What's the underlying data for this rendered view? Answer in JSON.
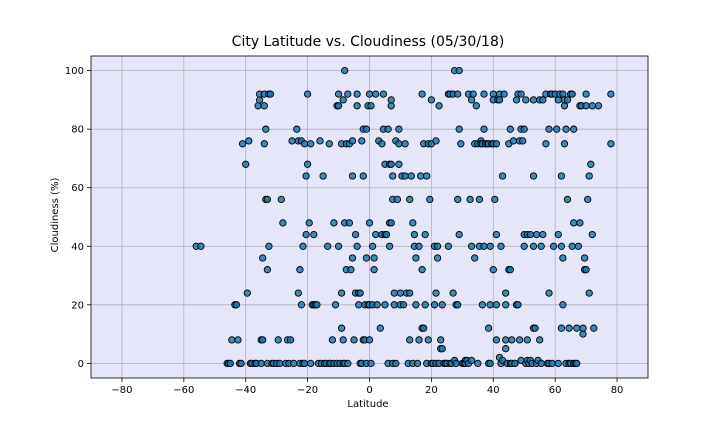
{
  "chart_data": {
    "type": "scatter",
    "title": "City Latitude vs. Cloudiness (05/30/18)",
    "xlabel": "Latitude",
    "ylabel": "Cloudiness (%)",
    "xlim": [
      -90,
      90
    ],
    "ylim": [
      -5,
      105
    ],
    "xticks": [
      -80,
      -60,
      -40,
      -20,
      0,
      20,
      40,
      60,
      80
    ],
    "yticks": [
      0,
      20,
      40,
      60,
      80,
      100
    ],
    "grid": true,
    "colors": {
      "plot_background": "#e6e6fa",
      "marker_fill": "#1f77b4",
      "marker_edge": "#000000",
      "grid": "#b0b0b0"
    },
    "points": [
      [
        -56,
        40
      ],
      [
        -54.5,
        40
      ],
      [
        -46,
        0
      ],
      [
        -45.5,
        0
      ],
      [
        -45,
        0
      ],
      [
        -44.5,
        8
      ],
      [
        -43.5,
        20
      ],
      [
        -43,
        20
      ],
      [
        -42.5,
        8
      ],
      [
        -42,
        0
      ],
      [
        -41.5,
        0
      ],
      [
        -41,
        75
      ],
      [
        -40,
        68
      ],
      [
        -39.5,
        24
      ],
      [
        -39,
        76
      ],
      [
        -38.5,
        0
      ],
      [
        -38,
        0
      ],
      [
        -37,
        0
      ],
      [
        -36.5,
        0
      ],
      [
        -36,
        88
      ],
      [
        -35.5,
        90
      ],
      [
        -35.5,
        92
      ],
      [
        -35,
        8
      ],
      [
        -35,
        0
      ],
      [
        -34.5,
        36
      ],
      [
        -34.5,
        8
      ],
      [
        -34,
        92
      ],
      [
        -34,
        88
      ],
      [
        -34,
        75
      ],
      [
        -33.5,
        80
      ],
      [
        -33.5,
        56
      ],
      [
        -33,
        32
      ],
      [
        -33,
        56
      ],
      [
        -33,
        0
      ],
      [
        -32.5,
        92
      ],
      [
        -32.5,
        40
      ],
      [
        -32,
        92
      ],
      [
        -31.5,
        0
      ],
      [
        -31,
        0
      ],
      [
        -30,
        0
      ],
      [
        -29.5,
        8
      ],
      [
        -29,
        0
      ],
      [
        -28.5,
        56
      ],
      [
        -28,
        48
      ],
      [
        -27,
        0
      ],
      [
        -26.5,
        8
      ],
      [
        -26,
        0
      ],
      [
        -25.5,
        8
      ],
      [
        -25,
        76
      ],
      [
        -24.5,
        0
      ],
      [
        -23.5,
        80
      ],
      [
        -23,
        76
      ],
      [
        -23,
        24
      ],
      [
        -22.5,
        0
      ],
      [
        -22.5,
        32
      ],
      [
        -22,
        76
      ],
      [
        -22,
        20
      ],
      [
        -21.5,
        40
      ],
      [
        -21.5,
        0
      ],
      [
        -21,
        0
      ],
      [
        -21,
        75
      ],
      [
        -20.5,
        44
      ],
      [
        -20.5,
        64
      ],
      [
        -20,
        68
      ],
      [
        -20,
        92
      ],
      [
        -19.5,
        48
      ],
      [
        -19,
        75
      ],
      [
        -19,
        0
      ],
      [
        -18.5,
        20
      ],
      [
        -18,
        44
      ],
      [
        -18,
        20
      ],
      [
        -17.5,
        20
      ],
      [
        -17,
        20
      ],
      [
        -16.5,
        0
      ],
      [
        -16,
        76
      ],
      [
        -15.5,
        0
      ],
      [
        -15,
        64
      ],
      [
        -14.5,
        0
      ],
      [
        -14,
        0
      ],
      [
        -13.5,
        40
      ],
      [
        -13,
        0
      ],
      [
        -13,
        75
      ],
      [
        -12.5,
        0
      ],
      [
        -12,
        8
      ],
      [
        -11.5,
        48
      ],
      [
        -11.5,
        0
      ],
      [
        -11,
        20
      ],
      [
        -10.5,
        88
      ],
      [
        -10.5,
        0
      ],
      [
        -10,
        92
      ],
      [
        -10,
        88
      ],
      [
        -10,
        40
      ],
      [
        -9.5,
        0
      ],
      [
        -9,
        75
      ],
      [
        -9,
        24
      ],
      [
        -9,
        12
      ],
      [
        -8.5,
        90
      ],
      [
        -8.5,
        8
      ],
      [
        -8.5,
        0
      ],
      [
        -8,
        48
      ],
      [
        -8,
        100
      ],
      [
        -8,
        0
      ],
      [
        -7.5,
        75
      ],
      [
        -7.5,
        32
      ],
      [
        -7,
        92
      ],
      [
        -7,
        0
      ],
      [
        -6.5,
        75
      ],
      [
        -6.5,
        48
      ],
      [
        -6,
        32
      ],
      [
        -5.5,
        76
      ],
      [
        -5.5,
        36
      ],
      [
        -5.5,
        64
      ],
      [
        -5,
        8
      ],
      [
        -4.5,
        44
      ],
      [
        -4.5,
        24
      ],
      [
        -4,
        88
      ],
      [
        -4,
        92
      ],
      [
        -4,
        40
      ],
      [
        -3.5,
        24
      ],
      [
        -3.5,
        20
      ],
      [
        -3,
        24
      ],
      [
        -3,
        0
      ],
      [
        -2.5,
        0
      ],
      [
        -2.5,
        76
      ],
      [
        -2,
        64
      ],
      [
        -2,
        80
      ],
      [
        -2,
        8
      ],
      [
        -1.5,
        8
      ],
      [
        -1.5,
        20
      ],
      [
        -1,
        80
      ],
      [
        -1,
        36
      ],
      [
        -1,
        0
      ],
      [
        -0.5,
        88
      ],
      [
        -0.5,
        20
      ],
      [
        0,
        92
      ],
      [
        0,
        48
      ],
      [
        0,
        20
      ],
      [
        0,
        8
      ],
      [
        0.5,
        88
      ],
      [
        0.5,
        0
      ],
      [
        1,
        40
      ],
      [
        1,
        20
      ],
      [
        1.5,
        36
      ],
      [
        1.5,
        32
      ],
      [
        2,
        92
      ],
      [
        2,
        44
      ],
      [
        2.5,
        20
      ],
      [
        3,
        76
      ],
      [
        3.5,
        12
      ],
      [
        4,
        44
      ],
      [
        4,
        75
      ],
      [
        4.5,
        92
      ],
      [
        4.5,
        80
      ],
      [
        5,
        44
      ],
      [
        5,
        68
      ],
      [
        5,
        20
      ],
      [
        5.5,
        44
      ],
      [
        6,
        80
      ],
      [
        6,
        0
      ],
      [
        6.5,
        68
      ],
      [
        6.5,
        48
      ],
      [
        6.5,
        40
      ],
      [
        7,
        88
      ],
      [
        7,
        90
      ],
      [
        7,
        48
      ],
      [
        7,
        68
      ],
      [
        7.5,
        64
      ],
      [
        7.5,
        56
      ],
      [
        7.5,
        0
      ],
      [
        8,
        24
      ],
      [
        8,
        20
      ],
      [
        8.5,
        0
      ],
      [
        8.5,
        76
      ],
      [
        9,
        56
      ],
      [
        9.5,
        80
      ],
      [
        9.5,
        75
      ],
      [
        9.5,
        68
      ],
      [
        10,
        24
      ],
      [
        10,
        20
      ],
      [
        10.5,
        64
      ],
      [
        11,
        20
      ],
      [
        11.5,
        75
      ],
      [
        11.5,
        64
      ],
      [
        12,
        24
      ],
      [
        12.5,
        0
      ],
      [
        13,
        8
      ],
      [
        13,
        56
      ],
      [
        13,
        24
      ],
      [
        13.5,
        64
      ],
      [
        14,
        0
      ],
      [
        14,
        48
      ],
      [
        14.5,
        44
      ],
      [
        14.5,
        40
      ],
      [
        15,
        36
      ],
      [
        15,
        20
      ],
      [
        15.5,
        0
      ],
      [
        16,
        8
      ],
      [
        16,
        40
      ],
      [
        16.5,
        64
      ],
      [
        17,
        92
      ],
      [
        17,
        32
      ],
      [
        17,
        12
      ],
      [
        17.5,
        75
      ],
      [
        17.5,
        12
      ],
      [
        18,
        20
      ],
      [
        18,
        44
      ],
      [
        18.5,
        0
      ],
      [
        18.5,
        64
      ],
      [
        19,
        75
      ],
      [
        19,
        8
      ],
      [
        19.5,
        56
      ],
      [
        20,
        0
      ],
      [
        20,
        90
      ],
      [
        20,
        75
      ],
      [
        20.5,
        0
      ],
      [
        21,
        20
      ],
      [
        21,
        40
      ],
      [
        21.5,
        76
      ],
      [
        21.5,
        24
      ],
      [
        21.5,
        0
      ],
      [
        22,
        40
      ],
      [
        22,
        36
      ],
      [
        22.5,
        88
      ],
      [
        22.5,
        0
      ],
      [
        23,
        8
      ],
      [
        23,
        5
      ],
      [
        23.5,
        20
      ],
      [
        23.5,
        5
      ],
      [
        24,
        0
      ],
      [
        24.5,
        0
      ],
      [
        25,
        0
      ],
      [
        25.5,
        40
      ],
      [
        25.5,
        92
      ],
      [
        26,
        92
      ],
      [
        26,
        0
      ],
      [
        26.5,
        0
      ],
      [
        27,
        24
      ],
      [
        27,
        92
      ],
      [
        27.5,
        100
      ],
      [
        27.5,
        1
      ],
      [
        28,
        20
      ],
      [
        28,
        0
      ],
      [
        28.5,
        20
      ],
      [
        28.5,
        56
      ],
      [
        28.5,
        92
      ],
      [
        29,
        100
      ],
      [
        29,
        80
      ],
      [
        29,
        44
      ],
      [
        29.5,
        75
      ],
      [
        30,
        0
      ],
      [
        30.5,
        0
      ],
      [
        31,
        1
      ],
      [
        31,
        0
      ],
      [
        31.5,
        1
      ],
      [
        32,
        92
      ],
      [
        32,
        0
      ],
      [
        32.5,
        56
      ],
      [
        33,
        90
      ],
      [
        33,
        40
      ],
      [
        33,
        1
      ],
      [
        33.5,
        92
      ],
      [
        34,
        75
      ],
      [
        34,
        36
      ],
      [
        34.5,
        88
      ],
      [
        35,
        75
      ],
      [
        35,
        0
      ],
      [
        35.5,
        56
      ],
      [
        35.5,
        40
      ],
      [
        36,
        76
      ],
      [
        36,
        75
      ],
      [
        36.5,
        75
      ],
      [
        36.5,
        20
      ],
      [
        37,
        92
      ],
      [
        37,
        80
      ],
      [
        37,
        40
      ],
      [
        37.5,
        75
      ],
      [
        38,
        75
      ],
      [
        38.5,
        0
      ],
      [
        38.5,
        12
      ],
      [
        38.5,
        75
      ],
      [
        39,
        20
      ],
      [
        39,
        40
      ],
      [
        39,
        0
      ],
      [
        39.5,
        75
      ],
      [
        40,
        75
      ],
      [
        40,
        32
      ],
      [
        40,
        92
      ],
      [
        40,
        90
      ],
      [
        40.5,
        56
      ],
      [
        41,
        75
      ],
      [
        41,
        44
      ],
      [
        41,
        20
      ],
      [
        41,
        8
      ],
      [
        41.5,
        90
      ],
      [
        42,
        92
      ],
      [
        42,
        90
      ],
      [
        42,
        2
      ],
      [
        42.5,
        0
      ],
      [
        42.5,
        40
      ],
      [
        43,
        64
      ],
      [
        43,
        1
      ],
      [
        43.5,
        92
      ],
      [
        44,
        8
      ],
      [
        44,
        24
      ],
      [
        44,
        20
      ],
      [
        44,
        5
      ],
      [
        44.5,
        0
      ],
      [
        45,
        32
      ],
      [
        45,
        75
      ],
      [
        45.5,
        32
      ],
      [
        45.5,
        80
      ],
      [
        45.5,
        0
      ],
      [
        46,
        0
      ],
      [
        46,
        8
      ],
      [
        46.5,
        76
      ],
      [
        47,
        0
      ],
      [
        47,
        0
      ],
      [
        47.5,
        20
      ],
      [
        47.5,
        90
      ],
      [
        48,
        92
      ],
      [
        48,
        20
      ],
      [
        48.5,
        76
      ],
      [
        48.5,
        8
      ],
      [
        49,
        92
      ],
      [
        49,
        80
      ],
      [
        49,
        1
      ],
      [
        49.5,
        76
      ],
      [
        50,
        40
      ],
      [
        50,
        80
      ],
      [
        50,
        44
      ],
      [
        50.5,
        0
      ],
      [
        50.5,
        90
      ],
      [
        51,
        44
      ],
      [
        51,
        8
      ],
      [
        51,
        1
      ],
      [
        51.5,
        0
      ],
      [
        52,
        44
      ],
      [
        52,
        1
      ],
      [
        52.5,
        0
      ],
      [
        53,
        12
      ],
      [
        53,
        64
      ],
      [
        53,
        40
      ],
      [
        53,
        90
      ],
      [
        53.5,
        12
      ],
      [
        54,
        44
      ],
      [
        54,
        0
      ],
      [
        54.5,
        1
      ],
      [
        55,
        90
      ],
      [
        55,
        8
      ],
      [
        55.5,
        40
      ],
      [
        55.5,
        0
      ],
      [
        56,
        44
      ],
      [
        56,
        90
      ],
      [
        57,
        92
      ],
      [
        57,
        75
      ],
      [
        57.5,
        0
      ],
      [
        58,
        80
      ],
      [
        58,
        24
      ],
      [
        58,
        0
      ],
      [
        58.5,
        92
      ],
      [
        59,
        0
      ],
      [
        59,
        92
      ],
      [
        59.5,
        40
      ],
      [
        60,
        92
      ],
      [
        60.5,
        80
      ],
      [
        61,
        0
      ],
      [
        61,
        90
      ],
      [
        61,
        44
      ],
      [
        61.5,
        92
      ],
      [
        62,
        64
      ],
      [
        62,
        40
      ],
      [
        62,
        12
      ],
      [
        62.5,
        92
      ],
      [
        62.5,
        36
      ],
      [
        62.5,
        20
      ],
      [
        63,
        75
      ],
      [
        63,
        88
      ],
      [
        63,
        90
      ],
      [
        63.5,
        0
      ],
      [
        63.5,
        80
      ],
      [
        64,
        90
      ],
      [
        64,
        56
      ],
      [
        64.5,
        12
      ],
      [
        64.5,
        0
      ],
      [
        65,
        92
      ],
      [
        65,
        0
      ],
      [
        65.5,
        92
      ],
      [
        65.5,
        40
      ],
      [
        66,
        48
      ],
      [
        66,
        80
      ],
      [
        66,
        0
      ],
      [
        66.5,
        0
      ],
      [
        67,
        0
      ],
      [
        67,
        12
      ],
      [
        67.5,
        40
      ],
      [
        68,
        88
      ],
      [
        68,
        48
      ],
      [
        68.5,
        88
      ],
      [
        69,
        10
      ],
      [
        69,
        12
      ],
      [
        69.5,
        36
      ],
      [
        69.5,
        32
      ],
      [
        70,
        92
      ],
      [
        70,
        88
      ],
      [
        70,
        32
      ],
      [
        70.5,
        56
      ],
      [
        71,
        64
      ],
      [
        71,
        24
      ],
      [
        71.5,
        68
      ],
      [
        72,
        44
      ],
      [
        72,
        88
      ],
      [
        72.5,
        12
      ],
      [
        74,
        88
      ],
      [
        78,
        92
      ],
      [
        78,
        75
      ]
    ]
  }
}
